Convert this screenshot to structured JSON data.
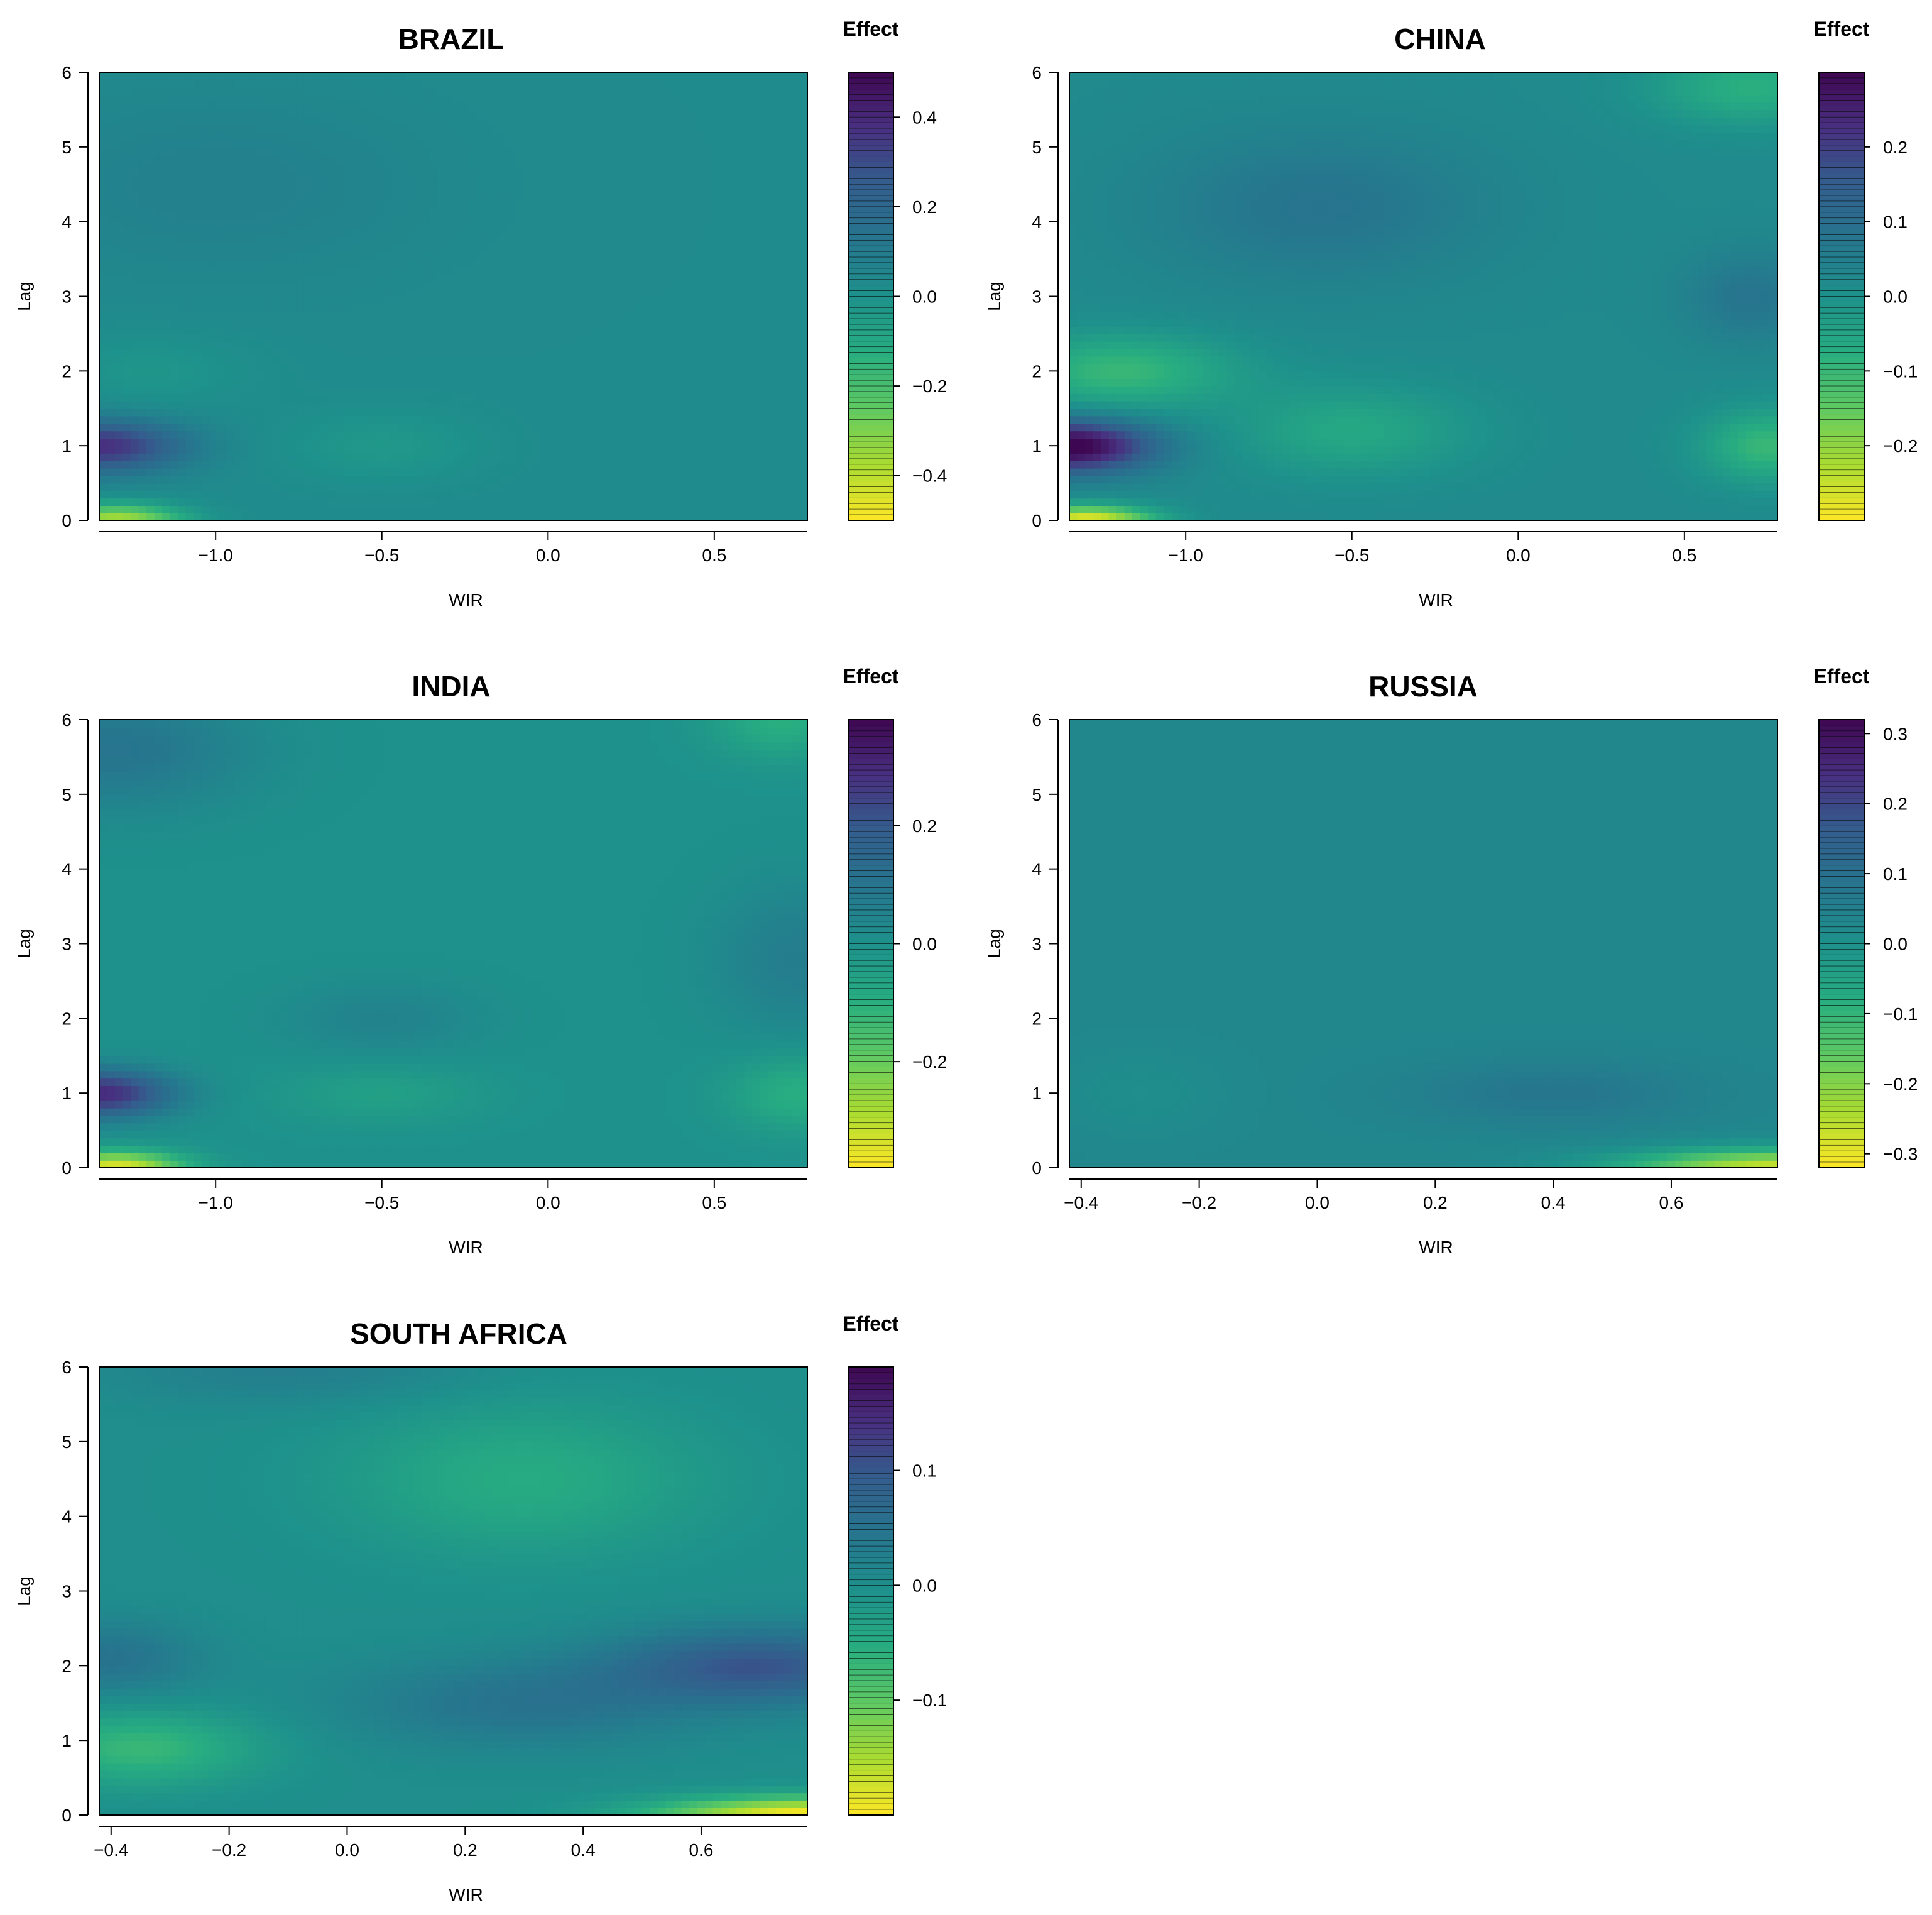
{
  "chart_data": [
    {
      "type": "heatmap",
      "title": "BRAZIL",
      "xlabel": "WIR",
      "ylabel": "Lag",
      "colorbar_title": "Effect",
      "xlim": [
        -1.35,
        0.78
      ],
      "ylim": [
        0,
        6
      ],
      "x_ticks": [
        "-1.0",
        "-0.5",
        "0.0",
        "0.5"
      ],
      "y_ticks": [
        "0",
        "1",
        "2",
        "3",
        "4",
        "5",
        "6"
      ],
      "z_range": [
        -0.5,
        0.5
      ],
      "colorbar_ticks": [
        "-0.4",
        "-0.2",
        "0.0",
        "0.2",
        "0.4"
      ],
      "base_effect": 0.03,
      "features": [
        {
          "x": -1.35,
          "y": 1.0,
          "sx": 0.25,
          "sy": 0.35,
          "value": 0.35
        },
        {
          "x": -1.3,
          "y": 0.0,
          "sx": 0.2,
          "sy": 0.22,
          "value": -0.4
        },
        {
          "x": -0.5,
          "y": 1.0,
          "sx": 0.3,
          "sy": 0.5,
          "value": -0.06
        },
        {
          "x": -1.2,
          "y": 2.0,
          "sx": 0.3,
          "sy": 0.5,
          "value": -0.05
        },
        {
          "x": -1.0,
          "y": 4.5,
          "sx": 0.6,
          "sy": 1.2,
          "value": 0.05
        }
      ]
    },
    {
      "type": "heatmap",
      "title": "CHINA",
      "xlabel": "WIR",
      "ylabel": "Lag",
      "colorbar_title": "Effect",
      "xlim": [
        -1.35,
        0.78
      ],
      "ylim": [
        0,
        6
      ],
      "x_ticks": [
        "-1.0",
        "-0.5",
        "0.0",
        "0.5"
      ],
      "y_ticks": [
        "0",
        "1",
        "2",
        "3",
        "4",
        "5",
        "6"
      ],
      "z_range": [
        -0.3,
        0.3
      ],
      "colorbar_ticks": [
        "-0.2",
        "-0.1",
        "0.0",
        "0.1",
        "0.2"
      ],
      "base_effect": 0.02,
      "features": [
        {
          "x": -1.35,
          "y": 1.0,
          "sx": 0.25,
          "sy": 0.35,
          "value": 0.3
        },
        {
          "x": -1.3,
          "y": 0.0,
          "sx": 0.2,
          "sy": 0.2,
          "value": -0.3
        },
        {
          "x": -1.2,
          "y": 2.0,
          "sx": 0.35,
          "sy": 0.5,
          "value": -0.12
        },
        {
          "x": -0.5,
          "y": 1.2,
          "sx": 0.35,
          "sy": 0.6,
          "value": -0.08
        },
        {
          "x": -0.6,
          "y": 4.2,
          "sx": 0.5,
          "sy": 1.0,
          "value": 0.06
        },
        {
          "x": 0.75,
          "y": 1.0,
          "sx": 0.2,
          "sy": 0.5,
          "value": -0.12
        },
        {
          "x": 0.7,
          "y": 3.0,
          "sx": 0.2,
          "sy": 0.6,
          "value": 0.06
        },
        {
          "x": 0.7,
          "y": 5.8,
          "sx": 0.3,
          "sy": 0.5,
          "value": -0.1
        }
      ]
    },
    {
      "type": "heatmap",
      "title": "INDIA",
      "xlabel": "WIR",
      "ylabel": "Lag",
      "colorbar_title": "Effect",
      "xlim": [
        -1.35,
        0.78
      ],
      "ylim": [
        0,
        6
      ],
      "x_ticks": [
        "-1.0",
        "-0.5",
        "0.0",
        "0.5"
      ],
      "y_ticks": [
        "0",
        "1",
        "2",
        "3",
        "4",
        "5",
        "6"
      ],
      "z_range": [
        -0.38,
        0.38
      ],
      "colorbar_ticks": [
        "-0.2",
        "0.0",
        "0.2"
      ],
      "base_effect": 0.0,
      "features": [
        {
          "x": -1.35,
          "y": 1.0,
          "sx": 0.22,
          "sy": 0.32,
          "value": 0.3
        },
        {
          "x": -1.3,
          "y": 0.0,
          "sx": 0.2,
          "sy": 0.22,
          "value": -0.35
        },
        {
          "x": -1.3,
          "y": 5.6,
          "sx": 0.4,
          "sy": 0.8,
          "value": 0.1
        },
        {
          "x": -0.5,
          "y": 2.0,
          "sx": 0.3,
          "sy": 0.5,
          "value": 0.05
        },
        {
          "x": -0.5,
          "y": 1.0,
          "sx": 0.3,
          "sy": 0.4,
          "value": -0.05
        },
        {
          "x": 0.75,
          "y": 2.8,
          "sx": 0.25,
          "sy": 1.0,
          "value": 0.07
        },
        {
          "x": 0.75,
          "y": 1.0,
          "sx": 0.2,
          "sy": 0.5,
          "value": -0.1
        },
        {
          "x": 0.7,
          "y": 6.0,
          "sx": 0.2,
          "sy": 0.5,
          "value": -0.1
        }
      ]
    },
    {
      "type": "heatmap",
      "title": "RUSSIA",
      "xlabel": "WIR",
      "ylabel": "Lag",
      "colorbar_title": "Effect",
      "xlim": [
        -0.42,
        0.78
      ],
      "ylim": [
        0,
        6
      ],
      "x_ticks": [
        "-0.4",
        "-0.2",
        "0.0",
        "0.2",
        "0.4",
        "0.6"
      ],
      "y_ticks": [
        "0",
        "1",
        "2",
        "3",
        "4",
        "5",
        "6"
      ],
      "z_range": [
        -0.32,
        0.32
      ],
      "colorbar_ticks": [
        "-0.3",
        "-0.2",
        "-0.1",
        "0.0",
        "0.1",
        "0.2",
        "0.3"
      ],
      "base_effect": 0.03,
      "features": [
        {
          "x": 0.4,
          "y": 1.0,
          "sx": 0.25,
          "sy": 0.45,
          "value": 0.05
        },
        {
          "x": 0.78,
          "y": 0.0,
          "sx": 0.25,
          "sy": 0.25,
          "value": -0.3
        },
        {
          "x": -0.3,
          "y": 1.0,
          "sx": 0.15,
          "sy": 0.6,
          "value": -0.02
        }
      ]
    },
    {
      "type": "heatmap",
      "title": "SOUTH AFRICA",
      "xlabel": "WIR",
      "ylabel": "Lag",
      "colorbar_title": "Effect",
      "xlim": [
        -0.42,
        0.78
      ],
      "ylim": [
        0,
        6
      ],
      "x_ticks": [
        "-0.4",
        "-0.2",
        "0.0",
        "0.2",
        "0.4",
        "0.6"
      ],
      "y_ticks": [
        "0",
        "1",
        "2",
        "3",
        "4",
        "5",
        "6"
      ],
      "z_range": [
        -0.2,
        0.19
      ],
      "colorbar_ticks": [
        "-0.1",
        "0.0",
        "0.1"
      ],
      "base_effect": 0.0,
      "features": [
        {
          "x": 0.7,
          "y": 2.0,
          "sx": 0.25,
          "sy": 0.5,
          "value": 0.1
        },
        {
          "x": 0.3,
          "y": 1.5,
          "sx": 0.3,
          "sy": 0.6,
          "value": 0.05
        },
        {
          "x": -0.4,
          "y": 2.1,
          "sx": 0.15,
          "sy": 0.5,
          "value": 0.05
        },
        {
          "x": -0.35,
          "y": 0.9,
          "sx": 0.2,
          "sy": 0.5,
          "value": -0.07
        },
        {
          "x": 0.78,
          "y": 0.0,
          "sx": 0.25,
          "sy": 0.25,
          "value": -0.2
        },
        {
          "x": 0.3,
          "y": 4.5,
          "sx": 0.3,
          "sy": 1.0,
          "value": -0.05
        },
        {
          "x": -0.1,
          "y": 6.0,
          "sx": 0.3,
          "sy": 0.5,
          "value": 0.03
        }
      ]
    }
  ]
}
